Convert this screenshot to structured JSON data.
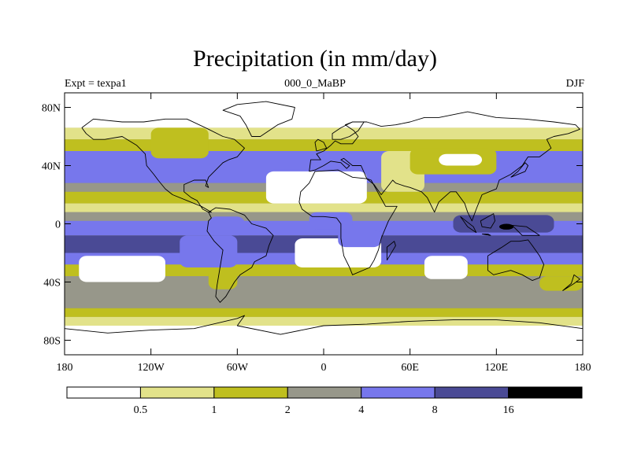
{
  "chart_data": {
    "type": "heatmap",
    "title": "Precipitation (in mm/day)",
    "left_label": "Expt = texpa1",
    "center_label": "000_0_MaBP",
    "right_label": "DJF",
    "xlim": [
      -180,
      180
    ],
    "ylim": [
      -90,
      90
    ],
    "x_ticks": [
      {
        "value": -180,
        "label": "180"
      },
      {
        "value": -120,
        "label": "120W"
      },
      {
        "value": -60,
        "label": "60W"
      },
      {
        "value": 0,
        "label": "0"
      },
      {
        "value": 60,
        "label": "60E"
      },
      {
        "value": 120,
        "label": "120E"
      },
      {
        "value": 180,
        "label": "180"
      }
    ],
    "y_ticks": [
      {
        "value": 80,
        "label": "80N"
      },
      {
        "value": 40,
        "label": "40N"
      },
      {
        "value": 0,
        "label": "0"
      },
      {
        "value": -40,
        "label": "40S"
      },
      {
        "value": -80,
        "label": "80S"
      }
    ],
    "colorbar": {
      "levels": [
        "0.5",
        "1",
        "2",
        "4",
        "8",
        "16"
      ],
      "colors": [
        "#ffffff",
        "#e2e28a",
        "#bfbf1f",
        "#97978a",
        "#7777ec",
        "#4a4a95",
        "#000000"
      ]
    },
    "bands": [
      {
        "lat": [
          66,
          90
        ],
        "level": 0
      },
      {
        "lat": [
          58,
          66
        ],
        "level": 1
      },
      {
        "lat": [
          50,
          58
        ],
        "level": 2
      },
      {
        "lat": [
          28,
          50
        ],
        "level": 4
      },
      {
        "lat": [
          22,
          28
        ],
        "level": 3
      },
      {
        "lat": [
          14,
          22
        ],
        "level": 2
      },
      {
        "lat": [
          8,
          14
        ],
        "level": 1
      },
      {
        "lat": [
          2,
          8
        ],
        "level": 3
      },
      {
        "lat": [
          -8,
          2
        ],
        "level": 4
      },
      {
        "lat": [
          -20,
          -8
        ],
        "level": 5
      },
      {
        "lat": [
          -28,
          -20
        ],
        "level": 4
      },
      {
        "lat": [
          -36,
          -28
        ],
        "level": 2
      },
      {
        "lat": [
          -58,
          -36
        ],
        "level": 3
      },
      {
        "lat": [
          -64,
          -58
        ],
        "level": 2
      },
      {
        "lat": [
          -70,
          -64
        ],
        "level": 1
      },
      {
        "lat": [
          -90,
          -70
        ],
        "level": 0
      }
    ],
    "patches": [
      {
        "lon": [
          -170,
          -110
        ],
        "lat": [
          -40,
          -22
        ],
        "level": 0
      },
      {
        "lon": [
          -100,
          -60
        ],
        "lat": [
          -30,
          -8
        ],
        "level": 4
      },
      {
        "lon": [
          -80,
          -60
        ],
        "lat": [
          -45,
          -30
        ],
        "level": 2
      },
      {
        "lon": [
          -40,
          30
        ],
        "lat": [
          14,
          36
        ],
        "level": 0
      },
      {
        "lon": [
          40,
          70
        ],
        "lat": [
          22,
          50
        ],
        "level": 1
      },
      {
        "lon": [
          60,
          120
        ],
        "lat": [
          34,
          52
        ],
        "level": 2
      },
      {
        "lon": [
          80,
          110
        ],
        "lat": [
          40,
          48
        ],
        "level": 0
      },
      {
        "lon": [
          -120,
          -80
        ],
        "lat": [
          45,
          66
        ],
        "level": 2
      },
      {
        "lon": [
          -20,
          40
        ],
        "lat": [
          -30,
          -10
        ],
        "level": 0
      },
      {
        "lon": [
          70,
          100
        ],
        "lat": [
          -38,
          -22
        ],
        "level": 0
      },
      {
        "lon": [
          90,
          160
        ],
        "lat": [
          -6,
          6
        ],
        "level": 5
      },
      {
        "lon": [
          122,
          132
        ],
        "lat": [
          -4,
          0
        ],
        "level": 6
      },
      {
        "lon": [
          10,
          40
        ],
        "lat": [
          -16,
          -4
        ],
        "level": 4
      },
      {
        "lon": [
          -80,
          -55
        ],
        "lat": [
          -8,
          5
        ],
        "level": 4
      },
      {
        "lon": [
          -10,
          20
        ],
        "lat": [
          -4,
          8
        ],
        "level": 4
      },
      {
        "lon": [
          150,
          180
        ],
        "lat": [
          -46,
          -36
        ],
        "level": 2
      }
    ],
    "coastlines": [
      [
        [
          -168,
          66
        ],
        [
          -160,
          72
        ],
        [
          -140,
          70
        ],
        [
          -125,
          70
        ],
        [
          -110,
          72
        ],
        [
          -95,
          72
        ],
        [
          -80,
          65
        ],
        [
          -70,
          60
        ],
        [
          -62,
          58
        ],
        [
          -55,
          52
        ],
        [
          -60,
          46
        ],
        [
          -66,
          44
        ],
        [
          -70,
          42
        ],
        [
          -76,
          36
        ],
        [
          -80,
          32
        ],
        [
          -82,
          26
        ],
        [
          -80,
          25
        ],
        [
          -82,
          30
        ],
        [
          -90,
          30
        ],
        [
          -97,
          27
        ],
        [
          -97,
          22
        ],
        [
          -92,
          18
        ],
        [
          -88,
          16
        ],
        [
          -84,
          10
        ],
        [
          -80,
          8
        ],
        [
          -78,
          8
        ],
        [
          -85,
          12
        ],
        [
          -95,
          16
        ],
        [
          -105,
          20
        ],
        [
          -110,
          24
        ],
        [
          -115,
          30
        ],
        [
          -118,
          34
        ],
        [
          -123,
          40
        ],
        [
          -124,
          48
        ],
        [
          -130,
          54
        ],
        [
          -140,
          60
        ],
        [
          -152,
          58
        ],
        [
          -160,
          58
        ],
        [
          -165,
          62
        ],
        [
          -168,
          66
        ]
      ],
      [
        [
          -80,
          8
        ],
        [
          -75,
          11
        ],
        [
          -65,
          10
        ],
        [
          -55,
          6
        ],
        [
          -50,
          0
        ],
        [
          -40,
          -3
        ],
        [
          -35,
          -8
        ],
        [
          -38,
          -15
        ],
        [
          -40,
          -22
        ],
        [
          -48,
          -26
        ],
        [
          -50,
          -30
        ],
        [
          -58,
          -35
        ],
        [
          -62,
          -40
        ],
        [
          -65,
          -45
        ],
        [
          -68,
          -50
        ],
        [
          -72,
          -54
        ],
        [
          -75,
          -50
        ],
        [
          -74,
          -42
        ],
        [
          -72,
          -30
        ],
        [
          -70,
          -18
        ],
        [
          -76,
          -12
        ],
        [
          -81,
          -5
        ],
        [
          -80,
          2
        ],
        [
          -78,
          4
        ],
        [
          -80,
          8
        ]
      ],
      [
        [
          -6,
          36
        ],
        [
          10,
          37
        ],
        [
          20,
          32
        ],
        [
          30,
          31
        ],
        [
          33,
          30
        ],
        [
          43,
          12
        ],
        [
          51,
          12
        ],
        [
          45,
          2
        ],
        [
          40,
          -10
        ],
        [
          38,
          -18
        ],
        [
          35,
          -25
        ],
        [
          32,
          -30
        ],
        [
          20,
          -35
        ],
        [
          18,
          -30
        ],
        [
          14,
          -22
        ],
        [
          12,
          -10
        ],
        [
          12,
          0
        ],
        [
          9,
          4
        ],
        [
          0,
          5
        ],
        [
          -8,
          5
        ],
        [
          -15,
          10
        ],
        [
          -17,
          15
        ],
        [
          -16,
          22
        ],
        [
          -10,
          28
        ],
        [
          -6,
          36
        ]
      ],
      [
        [
          -10,
          36
        ],
        [
          -9,
          44
        ],
        [
          -2,
          44
        ],
        [
          -5,
          48
        ],
        [
          0,
          50
        ],
        [
          5,
          54
        ],
        [
          8,
          57
        ],
        [
          12,
          55
        ],
        [
          20,
          55
        ],
        [
          24,
          60
        ],
        [
          21,
          64
        ],
        [
          15,
          68
        ],
        [
          20,
          70
        ],
        [
          30,
          70
        ],
        [
          40,
          67
        ],
        [
          50,
          68
        ],
        [
          60,
          70
        ],
        [
          70,
          73
        ],
        [
          80,
          73
        ],
        [
          100,
          77
        ],
        [
          120,
          73
        ],
        [
          140,
          72
        ],
        [
          160,
          70
        ],
        [
          175,
          68
        ],
        [
          178,
          65
        ],
        [
          170,
          62
        ],
        [
          160,
          60
        ],
        [
          155,
          58
        ],
        [
          158,
          52
        ],
        [
          150,
          46
        ],
        [
          142,
          46
        ],
        [
          138,
          40
        ],
        [
          130,
          34
        ],
        [
          122,
          30
        ],
        [
          120,
          24
        ],
        [
          110,
          20
        ],
        [
          106,
          10
        ],
        [
          103,
          2
        ],
        [
          100,
          8
        ],
        [
          98,
          14
        ],
        [
          92,
          22
        ],
        [
          88,
          22
        ],
        [
          80,
          15
        ],
        [
          77,
          8
        ],
        [
          72,
          18
        ],
        [
          68,
          22
        ],
        [
          60,
          25
        ],
        [
          56,
          26
        ],
        [
          50,
          28
        ],
        [
          48,
          30
        ],
        [
          40,
          20
        ],
        [
          35,
          27
        ],
        [
          30,
          31
        ],
        [
          26,
          40
        ],
        [
          20,
          40
        ],
        [
          14,
          45
        ],
        [
          12,
          44
        ],
        [
          18,
          40
        ],
        [
          16,
          38
        ],
        [
          12,
          42
        ],
        [
          5,
          43
        ],
        [
          0,
          40
        ],
        [
          -6,
          37
        ],
        [
          -10,
          36
        ]
      ],
      [
        [
          114,
          -22
        ],
        [
          114,
          -32
        ],
        [
          118,
          -35
        ],
        [
          130,
          -32
        ],
        [
          138,
          -35
        ],
        [
          145,
          -39
        ],
        [
          150,
          -37
        ],
        [
          153,
          -28
        ],
        [
          150,
          -22
        ],
        [
          145,
          -15
        ],
        [
          142,
          -11
        ],
        [
          136,
          -12
        ],
        [
          130,
          -12
        ],
        [
          124,
          -16
        ],
        [
          114,
          -22
        ]
      ],
      [
        [
          -50,
          60
        ],
        [
          -44,
          60
        ],
        [
          -32,
          68
        ],
        [
          -22,
          72
        ],
        [
          -20,
          80
        ],
        [
          -40,
          84
        ],
        [
          -60,
          82
        ],
        [
          -70,
          78
        ],
        [
          -58,
          74
        ],
        [
          -54,
          68
        ],
        [
          -50,
          60
        ]
      ],
      [
        [
          -180,
          -72
        ],
        [
          -150,
          -75
        ],
        [
          -120,
          -73
        ],
        [
          -90,
          -72
        ],
        [
          -60,
          -65
        ],
        [
          -55,
          -63
        ],
        [
          -60,
          -70
        ],
        [
          -30,
          -76
        ],
        [
          0,
          -70
        ],
        [
          30,
          -69
        ],
        [
          60,
          -67
        ],
        [
          90,
          -66
        ],
        [
          120,
          -66
        ],
        [
          150,
          -68
        ],
        [
          180,
          -72
        ]
      ],
      [
        [
          6,
          58
        ],
        [
          12,
          58
        ],
        [
          18,
          60
        ],
        [
          24,
          64
        ],
        [
          28,
          70
        ],
        [
          20,
          70
        ],
        [
          12,
          66
        ],
        [
          6,
          62
        ],
        [
          6,
          58
        ]
      ],
      [
        [
          -5,
          50
        ],
        [
          2,
          52
        ],
        [
          0,
          56
        ],
        [
          -4,
          58
        ],
        [
          -6,
          56
        ],
        [
          -5,
          50
        ]
      ],
      [
        [
          44,
          -25
        ],
        [
          50,
          -15
        ],
        [
          49,
          -12
        ],
        [
          44,
          -16
        ],
        [
          44,
          -25
        ]
      ],
      [
        [
          130,
          32
        ],
        [
          135,
          34
        ],
        [
          140,
          36
        ],
        [
          142,
          40
        ],
        [
          140,
          42
        ],
        [
          135,
          36
        ],
        [
          130,
          32
        ]
      ],
      [
        [
          95,
          5
        ],
        [
          104,
          -2
        ],
        [
          106,
          -6
        ],
        [
          100,
          -2
        ],
        [
          95,
          5
        ]
      ],
      [
        [
          110,
          -7
        ],
        [
          114,
          -7
        ],
        [
          116,
          -8
        ],
        [
          110,
          -7
        ]
      ],
      [
        [
          109,
          2
        ],
        [
          118,
          7
        ],
        [
          119,
          2
        ],
        [
          116,
          -3
        ],
        [
          110,
          -2
        ],
        [
          109,
          2
        ]
      ],
      [
        [
          131,
          -1
        ],
        [
          141,
          -2
        ],
        [
          150,
          -8
        ],
        [
          144,
          -8
        ],
        [
          138,
          -8
        ],
        [
          131,
          -1
        ]
      ],
      [
        [
          166,
          -46
        ],
        [
          174,
          -41
        ],
        [
          178,
          -38
        ],
        [
          174,
          -35
        ],
        [
          172,
          -41
        ],
        [
          166,
          -46
        ]
      ]
    ]
  }
}
